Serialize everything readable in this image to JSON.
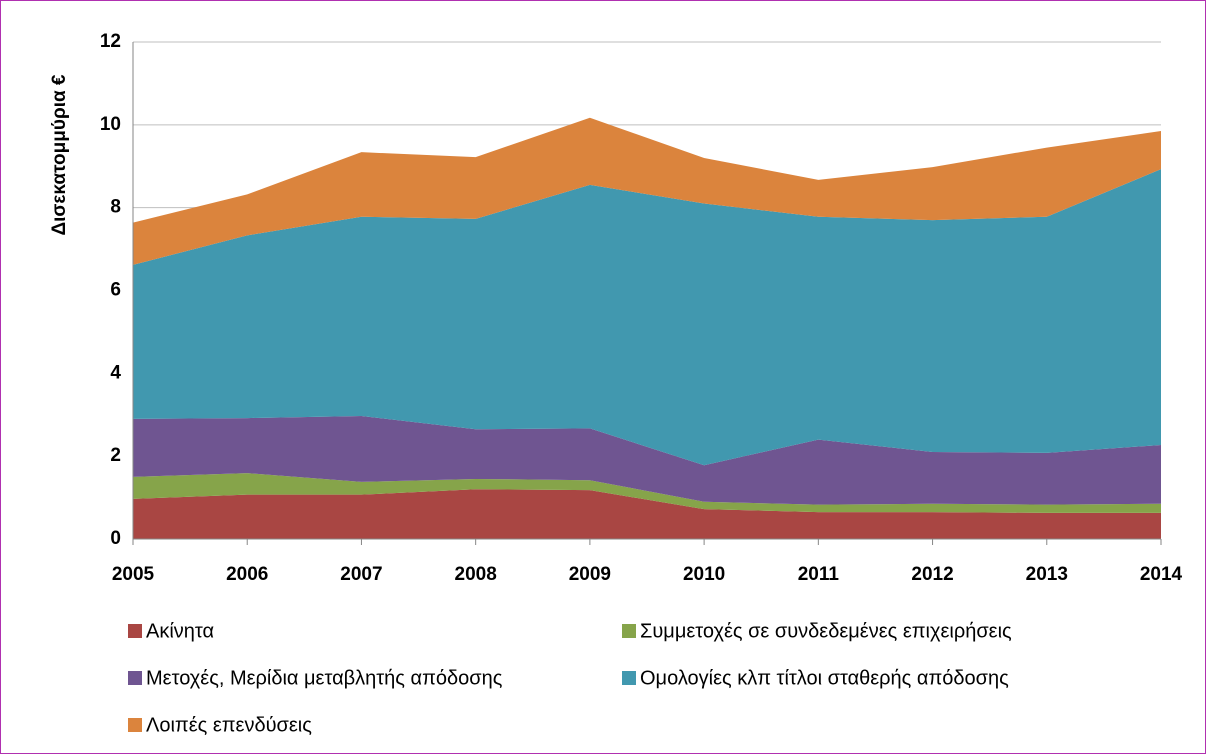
{
  "chart_data": {
    "type": "stacked_area",
    "y_label": "Δισεκατομμύρια €",
    "categories": [
      "2005",
      "2006",
      "2007",
      "2008",
      "2009",
      "2010",
      "2011",
      "2012",
      "2013",
      "2014"
    ],
    "series": [
      {
        "name": "Ακίνητα",
        "color": "#a94643",
        "values": [
          0.97,
          1.07,
          1.07,
          1.2,
          1.18,
          0.72,
          0.65,
          0.65,
          0.63,
          0.63
        ]
      },
      {
        "name": "Συμμετοχές σε συνδεδεμένες επιχειρήσεις",
        "color": "#86a44a",
        "values": [
          0.53,
          0.52,
          0.31,
          0.25,
          0.24,
          0.18,
          0.18,
          0.2,
          0.2,
          0.22
        ]
      },
      {
        "name": "Μετοχές, Μερίδια μεταβλητής απόδοσης",
        "color": "#6f5591",
        "values": [
          1.4,
          1.33,
          1.59,
          1.2,
          1.25,
          0.88,
          1.57,
          1.25,
          1.25,
          1.42
        ]
      },
      {
        "name": "Ομολογίες κλπ τίτλοι σταθερής απόδοσης",
        "color": "#4198af",
        "values": [
          3.72,
          4.41,
          4.81,
          5.08,
          5.88,
          6.32,
          5.38,
          5.6,
          5.7,
          6.66
        ]
      },
      {
        "name": "Λοιπές επενδύσεις",
        "color": "#db843d",
        "values": [
          1.02,
          0.99,
          1.56,
          1.49,
          1.62,
          1.1,
          0.89,
          1.28,
          1.67,
          0.92
        ]
      }
    ],
    "ylim": [
      0,
      12
    ],
    "yticks": [
      0,
      2,
      4,
      6,
      8,
      10,
      12
    ],
    "grid": true
  }
}
